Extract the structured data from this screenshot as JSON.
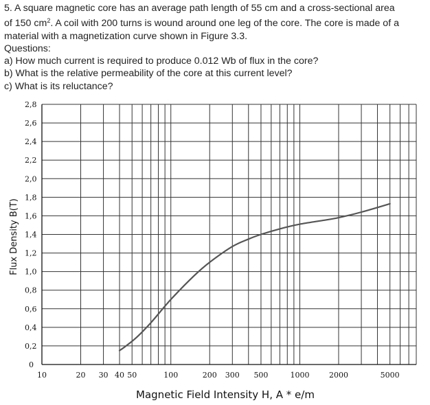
{
  "problem": {
    "line1": "5. A square magnetic core has an average path length of 55 cm and a cross-sectional area",
    "line2_pre": "of 150 cm",
    "line2_sup": "2",
    "line2_post": ". A coil with 200 turns is wound around one leg of the core. The core is made of a",
    "line3": "material with a magnetization curve shown in Figure 3.3.",
    "questions_heading": "Questions:",
    "questions": [
      "a) How much current is required to produce 0.012 Wb of flux in the core?",
      "b) What is the relative permeability of the core at this current level?",
      "c) What is its reluctance?"
    ]
  },
  "chart_data": {
    "type": "line",
    "xlabel": "Magnetic Field Intensity H, A * e/m",
    "ylabel": "Flux Density B(T)",
    "xscale": "log",
    "xlim": [
      10,
      8000
    ],
    "ylim": [
      0,
      2.8
    ],
    "x_ticks": [
      {
        "value": 10,
        "label": "10"
      },
      {
        "value": 20,
        "label": "20"
      },
      {
        "value": 30,
        "label": "30"
      },
      {
        "value": 40,
        "label": "40"
      },
      {
        "value": 50,
        "label": "50"
      },
      {
        "value": 100,
        "label": "100"
      },
      {
        "value": 200,
        "label": "200"
      },
      {
        "value": 300,
        "label": "300"
      },
      {
        "value": 500,
        "label": "500"
      },
      {
        "value": 1000,
        "label": "1000"
      },
      {
        "value": 2000,
        "label": "2000"
      },
      {
        "value": 5000,
        "label": "5000"
      }
    ],
    "y_ticks": [
      {
        "value": 0,
        "label": "0"
      },
      {
        "value": 0.2,
        "label": "0,2"
      },
      {
        "value": 0.4,
        "label": "0,4"
      },
      {
        "value": 0.6,
        "label": "0,6"
      },
      {
        "value": 0.8,
        "label": "0,8"
      },
      {
        "value": 1.0,
        "label": "1,0"
      },
      {
        "value": 1.2,
        "label": "1,2"
      },
      {
        "value": 1.4,
        "label": "1,4"
      },
      {
        "value": 1.6,
        "label": "1,6"
      },
      {
        "value": 1.8,
        "label": "1,8"
      },
      {
        "value": 2.0,
        "label": "2,0"
      },
      {
        "value": 2.2,
        "label": "2,2"
      },
      {
        "value": 2.4,
        "label": "2,4"
      },
      {
        "value": 2.6,
        "label": "2,6"
      },
      {
        "value": 2.8,
        "label": "2,8"
      }
    ],
    "x_gridlines": [
      10,
      20,
      30,
      40,
      50,
      60,
      70,
      80,
      90,
      100,
      200,
      300,
      400,
      500,
      600,
      700,
      800,
      900,
      1000,
      2000,
      3000,
      4000,
      5000,
      6000,
      7000,
      8000
    ],
    "grid": true,
    "series": [
      {
        "color": "#555555",
        "x": [
          40,
          45,
          55,
          70,
          100,
          150,
          200,
          300,
          400,
          500,
          700,
          1000,
          1500,
          2000,
          3000,
          5000
        ],
        "y": [
          0.15,
          0.2,
          0.3,
          0.45,
          0.7,
          0.95,
          1.1,
          1.27,
          1.35,
          1.4,
          1.46,
          1.51,
          1.55,
          1.58,
          1.64,
          1.73
        ]
      }
    ]
  }
}
